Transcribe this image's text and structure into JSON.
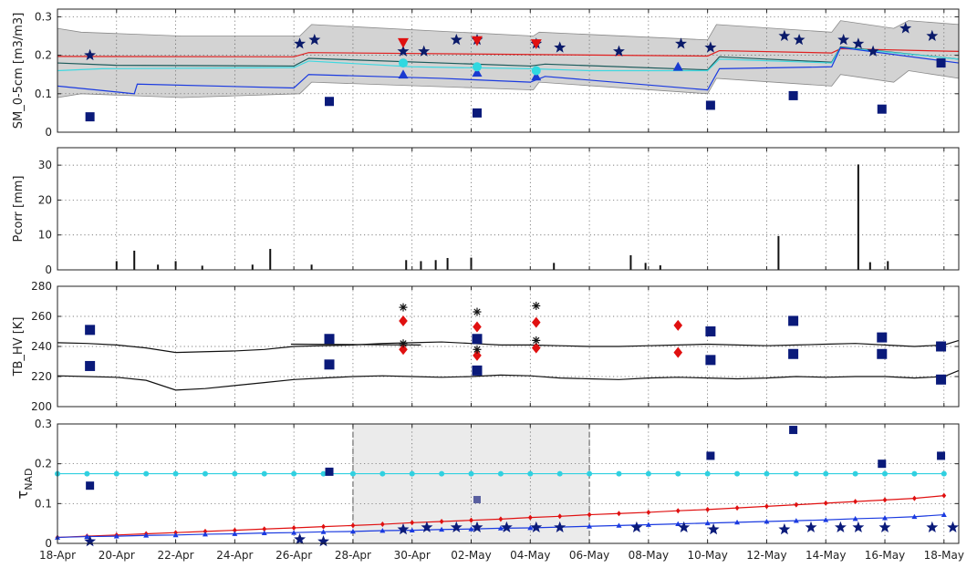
{
  "chart_data": [
    {
      "type": "line",
      "id": "sm",
      "ylabel": "SM_0-5cm [m3/m3]",
      "ylim": [
        0,
        0.32
      ],
      "yticks": [
        0,
        0.1,
        0.2,
        0.3
      ],
      "grid": true,
      "band": {
        "x": [
          0,
          0.8,
          4.2,
          8.2,
          8.6,
          16.1,
          16.3,
          22.0,
          22.3,
          26.2,
          26.5,
          28.3,
          28.8,
          30.5
        ],
        "upper": [
          0.27,
          0.26,
          0.25,
          0.25,
          0.28,
          0.25,
          0.26,
          0.24,
          0.28,
          0.26,
          0.29,
          0.27,
          0.29,
          0.28
        ],
        "lower": [
          0.09,
          0.1,
          0.09,
          0.1,
          0.13,
          0.11,
          0.13,
          0.1,
          0.14,
          0.12,
          0.15,
          0.13,
          0.16,
          0.14
        ]
      },
      "series": [
        {
          "color": "#e02020",
          "x": [
            0,
            8.0,
            8.5,
            22.0,
            22.4,
            26.2,
            26.5,
            30.5
          ],
          "y": [
            0.197,
            0.196,
            0.207,
            0.198,
            0.212,
            0.206,
            0.217,
            0.21
          ]
        },
        {
          "color": "#1a5a5a",
          "x": [
            0,
            2.0,
            8.0,
            8.5,
            16.0,
            16.5,
            22.0,
            22.4,
            26.2,
            26.5,
            30.5
          ],
          "y": [
            0.18,
            0.174,
            0.172,
            0.192,
            0.172,
            0.177,
            0.162,
            0.196,
            0.182,
            0.222,
            0.19
          ]
        },
        {
          "color": "#40d8e0",
          "x": [
            0,
            1.5,
            8.0,
            8.5,
            12.0,
            16.0,
            18.0,
            22.0,
            22.4,
            26.2,
            26.5,
            30.5
          ],
          "y": [
            0.16,
            0.165,
            0.168,
            0.185,
            0.17,
            0.165,
            0.16,
            0.16,
            0.19,
            0.18,
            0.22,
            0.19
          ]
        },
        {
          "color": "#1a3ae0",
          "x": [
            0,
            2.6,
            2.7,
            8.0,
            8.5,
            13.0,
            16.0,
            16.5,
            22.0,
            22.4,
            26.2,
            26.5,
            30.5
          ],
          "y": [
            0.12,
            0.1,
            0.125,
            0.115,
            0.15,
            0.14,
            0.13,
            0.145,
            0.11,
            0.165,
            0.17,
            0.22,
            0.18
          ]
        }
      ],
      "markers": [
        {
          "shape": "star",
          "color": "#0a1a6a",
          "size": 8,
          "x": [
            1.1,
            8.2,
            8.7,
            11.7,
            12.4,
            13.5,
            14.2,
            16.2,
            17.0,
            19.0,
            21.1,
            22.1,
            24.6,
            25.1,
            26.6,
            27.1,
            27.6,
            28.7,
            29.6
          ],
          "y": [
            0.2,
            0.23,
            0.24,
            0.21,
            0.21,
            0.24,
            0.24,
            0.23,
            0.22,
            0.21,
            0.23,
            0.22,
            0.25,
            0.24,
            0.24,
            0.23,
            0.21,
            0.27,
            0.25
          ]
        },
        {
          "shape": "square",
          "color": "#0a1a7a",
          "size": 10,
          "x": [
            1.1,
            9.2,
            14.2,
            22.1,
            24.9,
            27.9,
            29.9
          ],
          "y": [
            0.04,
            0.08,
            0.05,
            0.07,
            0.095,
            0.06,
            0.18
          ]
        },
        {
          "shape": "tridown",
          "color": "#e01010",
          "size": 12,
          "x": [
            11.7,
            14.2,
            16.2
          ],
          "y": [
            0.233,
            0.238,
            0.23
          ]
        },
        {
          "shape": "triup",
          "color": "#1a3ad0",
          "size": 11,
          "x": [
            11.7,
            14.2,
            16.2,
            21.0
          ],
          "y": [
            0.15,
            0.155,
            0.145,
            0.17
          ]
        },
        {
          "shape": "circle",
          "color": "#30d8e0",
          "size": 10,
          "x": [
            11.7,
            14.2,
            16.2
          ],
          "y": [
            0.18,
            0.17,
            0.16
          ]
        }
      ]
    },
    {
      "type": "bar",
      "id": "pcorr",
      "ylabel": "Pcorr [mm]",
      "ylim": [
        0,
        35
      ],
      "yticks": [
        0,
        10,
        20,
        30
      ],
      "grid": true,
      "x": [
        2.0,
        2.6,
        3.4,
        4.0,
        4.9,
        6.6,
        7.2,
        8.6,
        11.8,
        12.3,
        12.8,
        13.2,
        14.0,
        16.8,
        19.4,
        19.9,
        20.4,
        24.4,
        27.1,
        27.5,
        28.1
      ],
      "values": [
        2.5,
        5.5,
        1.5,
        2.5,
        1.2,
        1.5,
        6.0,
        1.5,
        2.8,
        2.5,
        2.8,
        3.4,
        3.5,
        2.0,
        4.2,
        2.0,
        1.3,
        9.7,
        30.2,
        2.2,
        2.5
      ]
    },
    {
      "type": "scatter",
      "id": "tb",
      "ylabel": "TB_HV [K]",
      "ylim": [
        200,
        280
      ],
      "yticks": [
        200,
        220,
        240,
        260,
        280
      ],
      "grid": true,
      "lines": [
        {
          "color": "#111111",
          "x": [
            0,
            1.0,
            2.0,
            3.0,
            4.0,
            5.0,
            6.0,
            7.0,
            8.0,
            9.0,
            10.0,
            11.0,
            12.0,
            13.0,
            14.0,
            15.0,
            16.0,
            17.0,
            18.0,
            19.0,
            20.0,
            21.0,
            22.0,
            23.0,
            24.0,
            25.0,
            26.0,
            27.0,
            28.0,
            29.0,
            30.0,
            30.5
          ],
          "y": [
            242.5,
            242.0,
            241.0,
            239.0,
            236.0,
            236.5,
            237.0,
            238.0,
            240.0,
            240.5,
            241.0,
            242.0,
            242.5,
            243.0,
            242.0,
            241.0,
            241.0,
            240.5,
            240.0,
            240.0,
            240.5,
            241.0,
            241.5,
            241.0,
            240.5,
            241.0,
            241.5,
            242.0,
            241.0,
            240.0,
            241.0,
            244.0
          ]
        },
        {
          "color": "#111111",
          "x": [
            0,
            1.0,
            2.0,
            3.0,
            4.0,
            5.0,
            6.0,
            7.0,
            8.0,
            9.0,
            10.0,
            11.0,
            12.0,
            13.0,
            14.0,
            15.0,
            16.0,
            17.0,
            18.0,
            19.0,
            20.0,
            21.0,
            22.0,
            23.0,
            24.0,
            25.0,
            26.0,
            27.0,
            28.0,
            29.0,
            30.0,
            30.5
          ],
          "y": [
            220.5,
            220.0,
            219.5,
            217.5,
            211.0,
            212.0,
            214.0,
            216.0,
            218.0,
            219.0,
            220.0,
            220.5,
            220.0,
            219.5,
            220.0,
            221.0,
            220.5,
            219.0,
            218.5,
            218.0,
            219.0,
            219.5,
            219.0,
            218.5,
            219.0,
            220.0,
            219.5,
            220.0,
            220.0,
            219.0,
            220.0,
            224.0
          ]
        },
        {
          "color": "#111111",
          "x": [
            7.9,
            12.3
          ],
          "y": [
            241.5,
            241.0
          ]
        }
      ],
      "markers": [
        {
          "shape": "square",
          "color": "#0a1a7a",
          "size": 11,
          "x": [
            1.1,
            1.1,
            9.2,
            9.2,
            14.2,
            14.2,
            22.1,
            22.1,
            24.9,
            24.9,
            27.9,
            27.9,
            29.9,
            29.9
          ],
          "y": [
            251,
            227,
            245,
            228,
            245,
            224,
            250,
            231,
            257,
            235,
            246,
            235,
            240,
            218
          ]
        },
        {
          "shape": "diamond",
          "color": "#e01010",
          "size": 12,
          "x": [
            11.7,
            11.7,
            14.2,
            14.2,
            16.2,
            16.2,
            21.0,
            21.0
          ],
          "y": [
            257,
            238,
            253,
            234,
            256,
            239,
            254,
            236
          ]
        },
        {
          "shape": "asterisk",
          "color": "#111111",
          "size": 9,
          "x": [
            11.7,
            11.7,
            14.2,
            14.2,
            16.2,
            16.2
          ],
          "y": [
            266,
            242,
            263,
            238,
            267,
            244
          ]
        }
      ]
    },
    {
      "type": "line",
      "id": "tau",
      "ylabel": "τNAD",
      "ylabel_main": "τ",
      "ylabel_sub": "NAD",
      "ylim": [
        0,
        0.3
      ],
      "yticks": [
        0,
        0.1,
        0.2,
        0.3
      ],
      "xticks": [
        "18-Apr",
        "20-Apr",
        "22-Apr",
        "24-Apr",
        "26-Apr",
        "28-Apr",
        "30-Apr",
        "02-May",
        "04-May",
        "06-May",
        "08-May",
        "10-May",
        "12-May",
        "14-May",
        "16-May",
        "18-May"
      ],
      "xlim": [
        0,
        30.5
      ],
      "grid": true,
      "shade": [
        10.0,
        18.0
      ],
      "series": [
        {
          "color": "#30d0e0",
          "marker": "circle",
          "x": [
            0,
            1.0,
            2.0,
            3.0,
            4.0,
            5.0,
            6.0,
            7.0,
            8.0,
            9.0,
            10.0,
            11.0,
            12.0,
            13.0,
            14.0,
            15.0,
            16.0,
            17.0,
            18.0,
            19.0,
            20.0,
            21.0,
            22.0,
            23.0,
            24.0,
            25.0,
            26.0,
            27.0,
            28.0,
            29.0,
            30.0
          ],
          "y": [
            0.175,
            0.175,
            0.175,
            0.175,
            0.175,
            0.175,
            0.175,
            0.175,
            0.175,
            0.175,
            0.175,
            0.175,
            0.175,
            0.175,
            0.175,
            0.175,
            0.175,
            0.175,
            0.175,
            0.175,
            0.175,
            0.175,
            0.175,
            0.175,
            0.175,
            0.175,
            0.175,
            0.175,
            0.175,
            0.175,
            0.175
          ]
        },
        {
          "color": "#e01010",
          "marker": "diamond",
          "x": [
            0,
            1.0,
            2.0,
            3.0,
            4.0,
            5.0,
            6.0,
            7.0,
            8.0,
            9.0,
            10.0,
            11.0,
            12.0,
            13.0,
            14.0,
            15.0,
            16.0,
            17.0,
            18.0,
            19.0,
            20.0,
            21.0,
            22.0,
            23.0,
            24.0,
            25.0,
            26.0,
            27.0,
            28.0,
            29.0,
            30.0
          ],
          "y": [
            0.015,
            0.018,
            0.021,
            0.024,
            0.027,
            0.03,
            0.033,
            0.036,
            0.039,
            0.042,
            0.045,
            0.048,
            0.052,
            0.055,
            0.058,
            0.061,
            0.065,
            0.068,
            0.072,
            0.075,
            0.078,
            0.082,
            0.085,
            0.089,
            0.093,
            0.097,
            0.101,
            0.105,
            0.109,
            0.113,
            0.12
          ]
        },
        {
          "color": "#1a3ae0",
          "marker": "triup",
          "x": [
            0,
            1.0,
            2.0,
            3.0,
            4.0,
            5.0,
            6.0,
            7.0,
            8.0,
            9.0,
            10.0,
            11.0,
            12.0,
            13.0,
            14.0,
            15.0,
            16.0,
            17.0,
            18.0,
            19.0,
            20.0,
            21.0,
            22.0,
            23.0,
            24.0,
            25.0,
            26.0,
            27.0,
            28.0,
            29.0,
            30.0
          ],
          "y": [
            0.015,
            0.017,
            0.018,
            0.02,
            0.021,
            0.023,
            0.024,
            0.026,
            0.027,
            0.029,
            0.03,
            0.032,
            0.033,
            0.035,
            0.036,
            0.038,
            0.039,
            0.041,
            0.043,
            0.045,
            0.047,
            0.049,
            0.051,
            0.053,
            0.055,
            0.057,
            0.059,
            0.062,
            0.064,
            0.067,
            0.072
          ]
        }
      ],
      "markers": [
        {
          "shape": "square",
          "color": "#0a1a7a",
          "size": 9,
          "x": [
            1.1,
            9.2,
            22.1,
            24.9,
            27.9,
            29.9
          ],
          "y": [
            0.145,
            0.18,
            0.22,
            0.285,
            0.2,
            0.22
          ]
        },
        {
          "shape": "square",
          "color": "#5a60a0",
          "size": 8,
          "x": [
            14.2
          ],
          "y": [
            0.11
          ]
        },
        {
          "shape": "star",
          "color": "#0a1a7a",
          "size": 8,
          "x": [
            1.1,
            8.2,
            9.0,
            11.7,
            12.5,
            13.5,
            14.2,
            15.2,
            16.2,
            17.0,
            19.6,
            21.2,
            22.2,
            24.6,
            25.5,
            26.5,
            27.1,
            28.0,
            29.6,
            30.3
          ],
          "y": [
            0.005,
            0.01,
            0.005,
            0.035,
            0.04,
            0.04,
            0.04,
            0.04,
            0.04,
            0.04,
            0.04,
            0.04,
            0.035,
            0.035,
            0.04,
            0.04,
            0.04,
            0.04,
            0.04,
            0.04
          ]
        }
      ]
    }
  ]
}
